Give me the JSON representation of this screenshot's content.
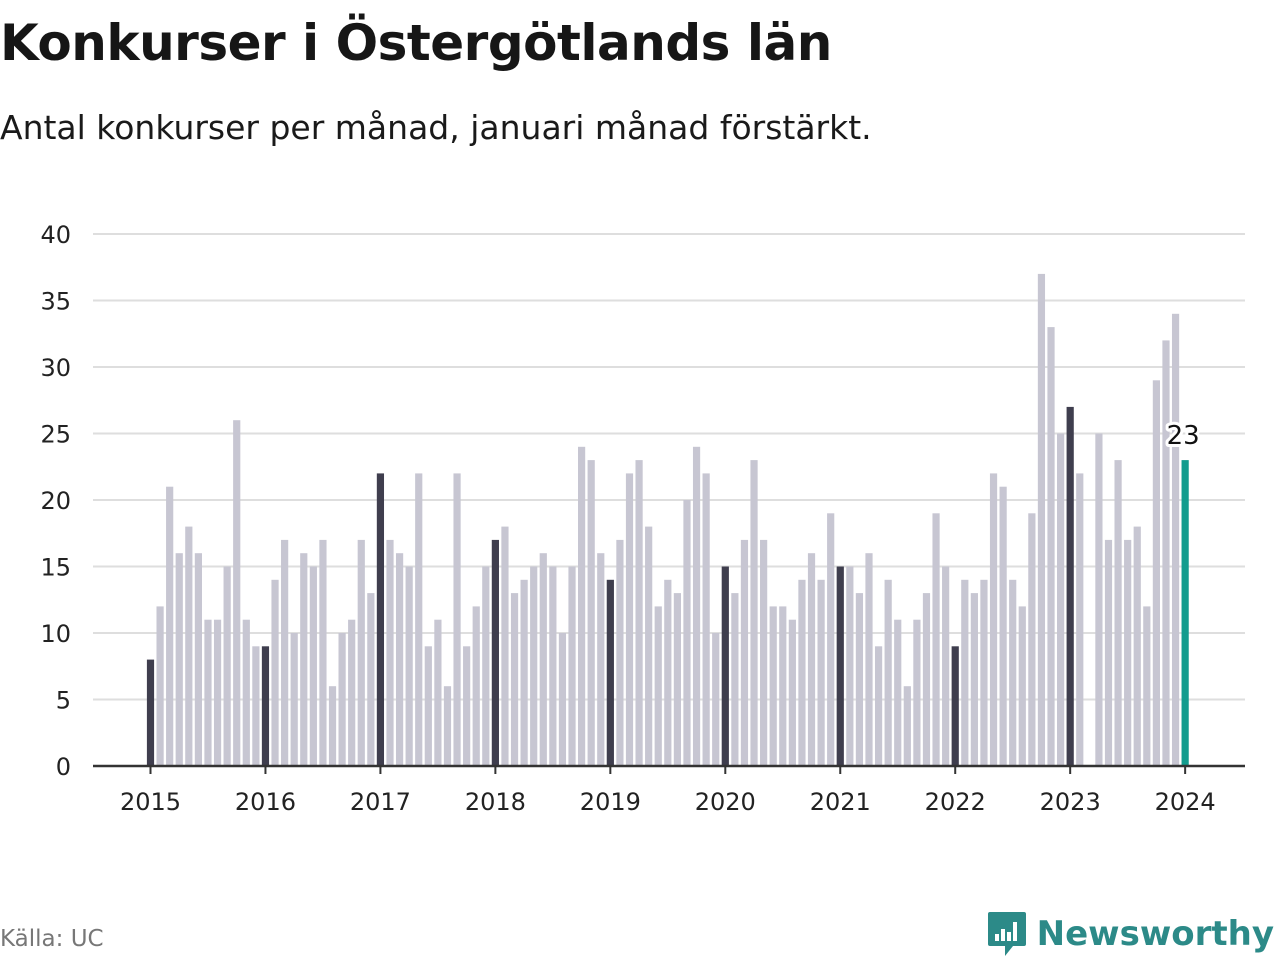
{
  "chart_data": {
    "type": "bar",
    "title": "Konkurser i Östergötlands län",
    "subtitle": "Antal konkurser per månad, januari månad förstärkt.",
    "x_tick_labels": [
      "2015",
      "2016",
      "2017",
      "2018",
      "2019",
      "2020",
      "2021",
      "2022",
      "2023",
      "2024"
    ],
    "y_ticks": [
      0,
      5,
      10,
      15,
      20,
      25,
      30,
      35,
      40
    ],
    "ylim": [
      0,
      40
    ],
    "grid": true,
    "start": "2015-01",
    "values": [
      8,
      12,
      21,
      16,
      18,
      16,
      11,
      11,
      15,
      26,
      11,
      9,
      9,
      14,
      17,
      10,
      16,
      15,
      17,
      6,
      10,
      11,
      17,
      13,
      22,
      17,
      16,
      15,
      22,
      9,
      11,
      6,
      22,
      9,
      12,
      15,
      17,
      18,
      13,
      14,
      15,
      16,
      15,
      10,
      15,
      24,
      23,
      16,
      14,
      17,
      22,
      23,
      18,
      12,
      14,
      13,
      20,
      24,
      22,
      10,
      15,
      13,
      17,
      23,
      17,
      12,
      12,
      11,
      14,
      16,
      14,
      19,
      15,
      15,
      13,
      16,
      9,
      14,
      11,
      6,
      11,
      13,
      19,
      15,
      9,
      14,
      13,
      14,
      22,
      21,
      14,
      12,
      19,
      37,
      33,
      25,
      27,
      22,
      null,
      25,
      17,
      23,
      17,
      18,
      12,
      29,
      32,
      34,
      23
    ],
    "data_labels": [
      {
        "date": "2024-01",
        "value": "23"
      }
    ],
    "colors": {
      "january": "#3f3e4e",
      "other": "#c7c6d2",
      "latest": "#139c8e",
      "grid": "#dedede",
      "axis": "#333333"
    }
  },
  "footer": {
    "source": "Källa: UC",
    "brand": "Newsworthy",
    "brand_color": "#2c8a88",
    "brand_icon": "newsworthy-logo-icon"
  }
}
